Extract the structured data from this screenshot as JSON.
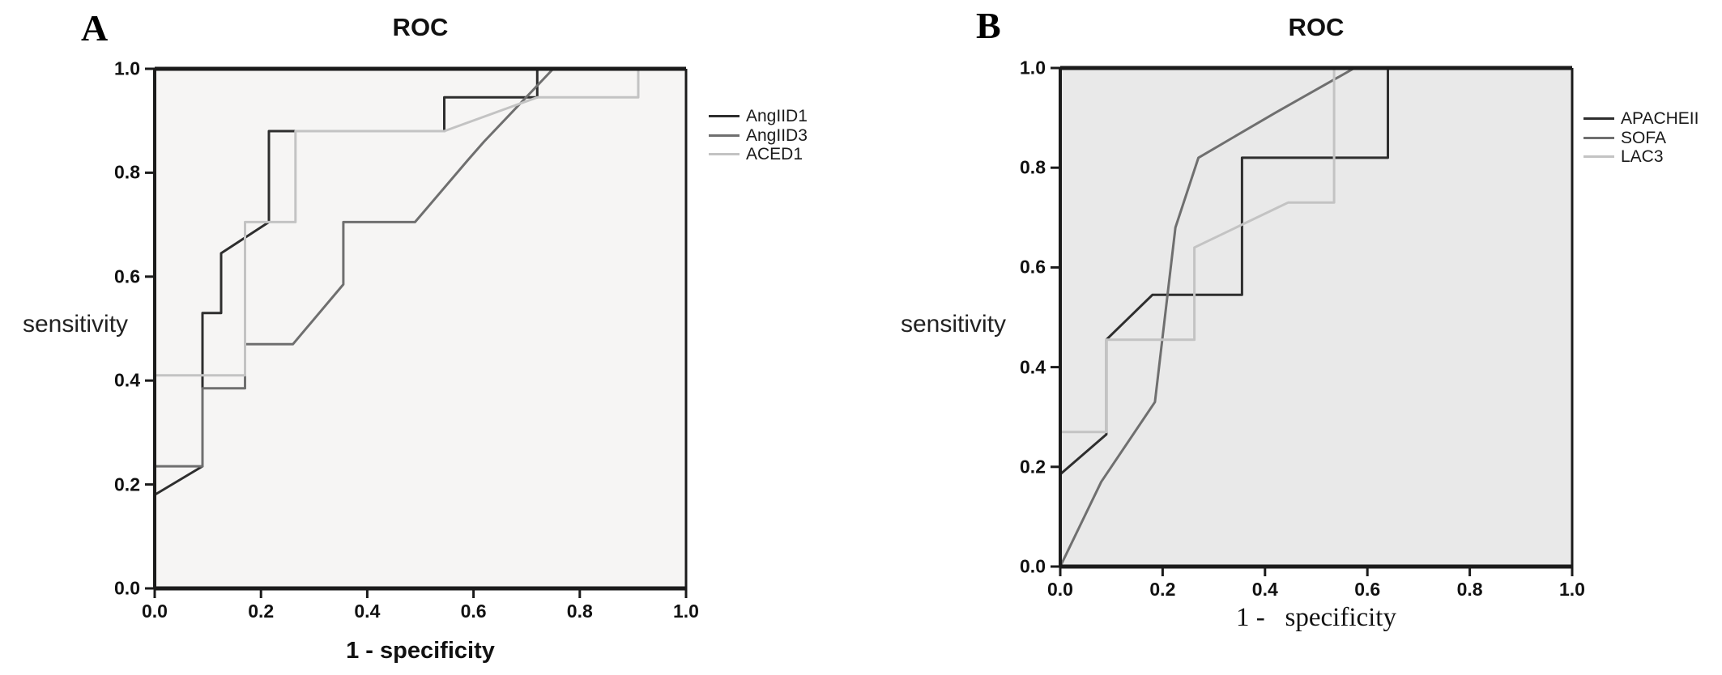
{
  "figure": {
    "description": "Two-panel ROC curve figure",
    "panels_count": 2
  },
  "chart_data": [
    {
      "type": "line",
      "panel_label": "A",
      "title": "ROC",
      "xlabel": "1 - specificity",
      "ylabel": "sensitivity",
      "xlim": [
        0,
        1
      ],
      "ylim": [
        0,
        1
      ],
      "x_ticks": [
        "0.0",
        "0.2",
        "0.4",
        "0.6",
        "0.8",
        "1.0"
      ],
      "y_ticks": [
        "1.0",
        "0.8",
        "0.6",
        "0.4",
        "0.2",
        "0.0"
      ],
      "grid": false,
      "legend_position": "right",
      "background": "#f6f5f4",
      "axis_color": "#1b1b1b",
      "series": [
        {
          "name": "AngIID1",
          "color": "#2e2e2e",
          "points": [
            [
              0,
              0.18
            ],
            [
              0.09,
              0.235
            ],
            [
              0.09,
              0.53
            ],
            [
              0.125,
              0.53
            ],
            [
              0.125,
              0.645
            ],
            [
              0.215,
              0.705
            ],
            [
              0.215,
              0.88
            ],
            [
              0.545,
              0.88
            ],
            [
              0.545,
              0.945
            ],
            [
              0.72,
              0.945
            ],
            [
              0.72,
              1
            ],
            [
              1,
              1
            ]
          ]
        },
        {
          "name": "AngIID3",
          "color": "#6f6f6f",
          "points": [
            [
              0,
              0.235
            ],
            [
              0.09,
              0.235
            ],
            [
              0.09,
              0.385
            ],
            [
              0.17,
              0.385
            ],
            [
              0.17,
              0.47
            ],
            [
              0.26,
              0.47
            ],
            [
              0.355,
              0.585
            ],
            [
              0.355,
              0.705
            ],
            [
              0.49,
              0.705
            ],
            [
              0.59,
              0.825
            ],
            [
              0.62,
              0.86
            ],
            [
              0.75,
              1
            ],
            [
              1,
              1
            ]
          ]
        },
        {
          "name": "ACED1",
          "color": "#c3c3c3",
          "points": [
            [
              0,
              0.41
            ],
            [
              0.17,
              0.41
            ],
            [
              0.17,
              0.705
            ],
            [
              0.265,
              0.705
            ],
            [
              0.265,
              0.88
            ],
            [
              0.545,
              0.88
            ],
            [
              0.72,
              0.945
            ],
            [
              0.91,
              0.945
            ],
            [
              0.91,
              1
            ],
            [
              1,
              1
            ]
          ]
        }
      ]
    },
    {
      "type": "line",
      "panel_label": "B",
      "title": "ROC",
      "xlabel": "1 -   specificity",
      "ylabel": "sensitivity",
      "xlim": [
        0,
        1
      ],
      "ylim": [
        0,
        1
      ],
      "x_ticks": [
        "0.0",
        "0.2",
        "0.4",
        "0.6",
        "0.8",
        "1.0"
      ],
      "y_ticks": [
        "1.0",
        "0.8",
        "0.6",
        "0.4",
        "0.2",
        "0.0"
      ],
      "grid": false,
      "legend_position": "right",
      "background": "#e9e9e9",
      "axis_color": "#1b1b1b",
      "series": [
        {
          "name": "APACHEII",
          "color": "#2e2e2e",
          "points": [
            [
              0,
              0.185
            ],
            [
              0.09,
              0.265
            ],
            [
              0.09,
              0.455
            ],
            [
              0.18,
              0.545
            ],
            [
              0.355,
              0.545
            ],
            [
              0.355,
              0.82
            ],
            [
              0.64,
              0.82
            ],
            [
              0.64,
              1
            ],
            [
              1,
              1
            ]
          ]
        },
        {
          "name": "SOFA",
          "color": "#6f6f6f",
          "points": [
            [
              0,
              0
            ],
            [
              0.08,
              0.17
            ],
            [
              0.185,
              0.33
            ],
            [
              0.225,
              0.68
            ],
            [
              0.27,
              0.82
            ],
            [
              0.42,
              0.91
            ],
            [
              0.575,
              1
            ],
            [
              1,
              1
            ]
          ]
        },
        {
          "name": "LAC3",
          "color": "#c3c3c3",
          "points": [
            [
              0,
              0.27
            ],
            [
              0.09,
              0.27
            ],
            [
              0.09,
              0.455
            ],
            [
              0.262,
              0.455
            ],
            [
              0.262,
              0.64
            ],
            [
              0.445,
              0.73
            ],
            [
              0.535,
              0.73
            ],
            [
              0.535,
              1
            ],
            [
              1,
              1
            ]
          ]
        }
      ]
    }
  ]
}
